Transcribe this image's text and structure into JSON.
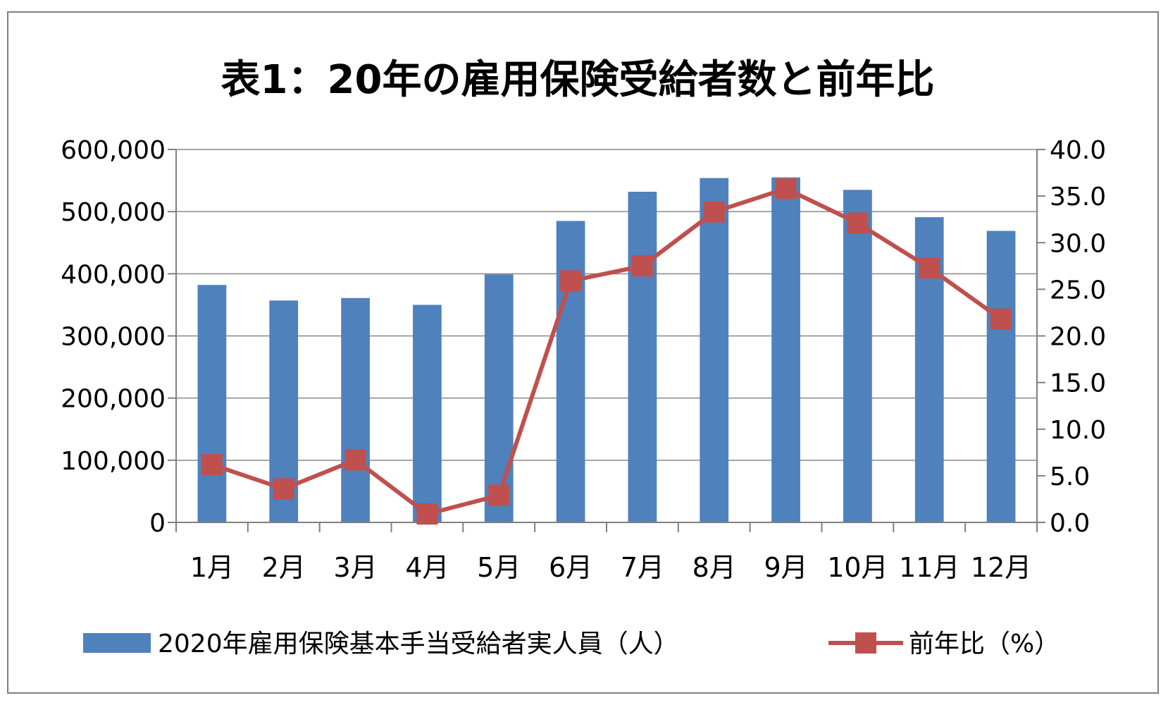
{
  "chart_data": {
    "type": "bar",
    "title": "表1：20年の雇用保険受給者数と前年比",
    "categories": [
      "1月",
      "2月",
      "3月",
      "4月",
      "5月",
      "6月",
      "7月",
      "8月",
      "9月",
      "10月",
      "11月",
      "12月"
    ],
    "series": [
      {
        "name": "2020年雇用保険基本手当受給者実人員（人）",
        "type": "bar",
        "axis": "left",
        "values": [
          382000,
          357000,
          361000,
          350000,
          399000,
          485000,
          532000,
          554000,
          555000,
          535000,
          491000,
          469000
        ]
      },
      {
        "name": "前年比（%）",
        "type": "line",
        "axis": "right",
        "values": [
          6.2,
          3.6,
          6.7,
          0.9,
          2.9,
          25.9,
          27.5,
          33.3,
          35.8,
          32.1,
          27.3,
          21.8
        ]
      }
    ],
    "y_left": {
      "min": 0,
      "max": 600000,
      "ticks": [
        "0",
        "100,000",
        "200,000",
        "300,000",
        "400,000",
        "500,000",
        "600,000"
      ]
    },
    "y_right": {
      "min": 0,
      "max": 40,
      "ticks": [
        "0.0",
        "5.0",
        "10.0",
        "15.0",
        "20.0",
        "25.0",
        "30.0",
        "35.0",
        "40.0"
      ]
    },
    "legend_position": "bottom",
    "grid": "horizontal",
    "colors": {
      "bar": "#4f81bd",
      "line": "#c0504d",
      "grid": "#888888",
      "axis": "#808080"
    }
  }
}
